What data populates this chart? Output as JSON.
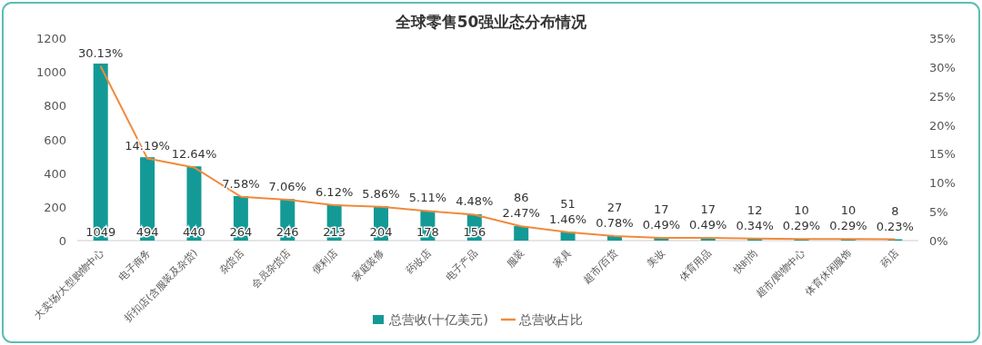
{
  "chart_data": {
    "type": "bar",
    "title": "全球零售50强业态分布情况",
    "categories": [
      "大卖场/大型购物中心",
      "电子商务",
      "折扣店(含服装及杂货)",
      "杂货店",
      "会员杂货店",
      "便利店",
      "家庭装修",
      "药妆店",
      "电子产品",
      "服装",
      "家具",
      "超市/百货",
      "美妆",
      "体育用品",
      "快时尚",
      "超市/购物中心",
      "体育休闲服饰",
      "药店"
    ],
    "series": [
      {
        "name": "总营收(十亿美元)",
        "color": "#139a96",
        "values": [
          1049,
          494,
          440,
          264,
          246,
          213,
          204,
          178,
          156,
          86,
          51,
          27,
          17,
          17,
          12,
          10,
          10,
          8
        ],
        "value_labels": [
          "1049",
          "494",
          "440",
          "264",
          "246",
          "213",
          "204",
          "178",
          "156",
          "86",
          "51",
          "27",
          "17",
          "17",
          "12",
          "10",
          "10",
          "8"
        ]
      },
      {
        "name": "总营收占比",
        "type": "line",
        "axis": "y2",
        "color": "#f08a3c",
        "values": [
          30.13,
          14.19,
          12.64,
          7.58,
          7.06,
          6.12,
          5.86,
          5.11,
          4.48,
          2.47,
          1.46,
          0.78,
          0.49,
          0.49,
          0.34,
          0.29,
          0.29,
          0.23
        ],
        "value_labels": [
          "30.13%",
          "14.19%",
          "12.64%",
          "7.58%",
          "7.06%",
          "6.12%",
          "5.86%",
          "5.11%",
          "4.48%",
          "2.47%",
          "1.46%",
          "0.78%",
          "0.49%",
          "0.49%",
          "0.34%",
          "0.29%",
          "0.29%",
          "0.23%"
        ]
      }
    ],
    "ylim": [
      0,
      1200
    ],
    "yticks": [
      0,
      200,
      400,
      600,
      800,
      1000,
      1200
    ],
    "y2lim": [
      0,
      35
    ],
    "y2ticks": [
      {
        "value": 0,
        "label": "0%"
      },
      {
        "value": 5,
        "label": "5%"
      },
      {
        "value": 10,
        "label": "10%"
      },
      {
        "value": 15,
        "label": "15%"
      },
      {
        "value": 20,
        "label": "20%"
      },
      {
        "value": 25,
        "label": "25%"
      },
      {
        "value": 30,
        "label": "30%"
      },
      {
        "value": 35,
        "label": "35%"
      }
    ],
    "legend": "bottom",
    "grid": false
  }
}
